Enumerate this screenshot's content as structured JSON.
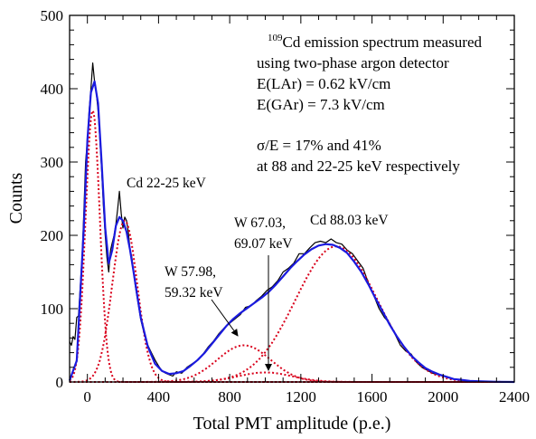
{
  "chart_data": {
    "type": "line",
    "title": "",
    "xlabel": "Total PMT amplitude (p.e.)",
    "ylabel": "Counts",
    "xlim": [
      -100,
      2400
    ],
    "ylim": [
      0,
      500
    ],
    "x_ticks": [
      0,
      400,
      800,
      1200,
      1600,
      2000,
      2400
    ],
    "y_ticks": [
      0,
      100,
      200,
      300,
      400,
      500
    ],
    "x_tick_labels": [
      "0",
      "400",
      "800",
      "1200",
      "1600",
      "2000",
      "2400"
    ],
    "y_tick_labels": [
      "0",
      "100",
      "200",
      "300",
      "400",
      "500"
    ],
    "grid": false,
    "legend": "none",
    "annotation": {
      "line1_superscript": "109",
      "line1_text": "Cd emission spectrum measured",
      "line2": "using two-phase argon detector",
      "line3": "E(LAr) = 0.62 kV/cm",
      "line4": "E(GAr) = 7.3 kV/cm",
      "line5": "σ/E = 17% and 41%",
      "line6": "at 88 and 22-25 keV respectively"
    },
    "peak_labels": [
      {
        "lines": [
          "Cd 22-25 keV"
        ]
      },
      {
        "lines": [
          "W 67.03,",
          "69.07 keV"
        ]
      },
      {
        "lines": [
          "Cd 88.03 keV"
        ]
      },
      {
        "lines": [
          "W 57.98,",
          "59.32 keV"
        ]
      }
    ],
    "components": [
      {
        "mean": 30,
        "sigma": 40,
        "amplitude": 370
      },
      {
        "mean": 210,
        "sigma": 70,
        "amplitude": 220
      },
      {
        "mean": 880,
        "sigma": 150,
        "amplitude": 50
      },
      {
        "mean": 1000,
        "sigma": 150,
        "amplitude": 13
      },
      {
        "mean": 1400,
        "sigma": 230,
        "amplitude": 185
      }
    ],
    "fit": {
      "x": [
        -100,
        -60,
        -20,
        0,
        20,
        40,
        60,
        80,
        100,
        120,
        140,
        160,
        180,
        200,
        220,
        240,
        260,
        280,
        300,
        340,
        380,
        420,
        460,
        500,
        540,
        580,
        620,
        660,
        700,
        740,
        780,
        820,
        860,
        900,
        940,
        980,
        1020,
        1060,
        1100,
        1140,
        1180,
        1220,
        1260,
        1300,
        1340,
        1380,
        1420,
        1460,
        1500,
        1540,
        1580,
        1620,
        1660,
        1700,
        1740,
        1780,
        1820,
        1860,
        1900,
        1940,
        1980,
        2020,
        2060,
        2100,
        2150,
        2200,
        2300,
        2400
      ],
      "y": [
        2,
        29,
        210,
        330,
        395,
        410,
        380,
        300,
        210,
        162,
        180,
        213,
        225,
        220,
        205,
        180,
        150,
        118,
        88,
        48,
        25,
        15,
        11,
        12,
        15,
        22,
        30,
        40,
        52,
        64,
        76,
        86,
        94,
        101,
        108,
        115,
        123,
        133,
        144,
        155,
        165,
        174,
        181,
        186,
        188,
        187,
        183,
        176,
        164,
        150,
        133,
        114,
        96,
        78,
        62,
        48,
        36,
        27,
        19,
        14,
        10,
        7,
        4,
        3,
        1.5,
        1,
        0.3,
        0
      ]
    },
    "measured": {
      "x": [
        -100,
        -90,
        -80,
        -70,
        -60,
        -50,
        -40,
        -30,
        -20,
        -10,
        0,
        10,
        20,
        30,
        40,
        50,
        60,
        70,
        80,
        90,
        100,
        110,
        120,
        130,
        140,
        150,
        160,
        170,
        180,
        190,
        200,
        210,
        220,
        230,
        240,
        250,
        260,
        270,
        280,
        290,
        300,
        320,
        340,
        360,
        380,
        400,
        420,
        440,
        460,
        480,
        500,
        530,
        560,
        590,
        620,
        650,
        680,
        710,
        740,
        770,
        800,
        830,
        860,
        890,
        920,
        950,
        980,
        1010,
        1040,
        1070,
        1100,
        1130,
        1160,
        1190,
        1220,
        1250,
        1280,
        1310,
        1340,
        1370,
        1400,
        1430,
        1460,
        1490,
        1520,
        1550,
        1580,
        1610,
        1640,
        1670,
        1700,
        1730,
        1760,
        1790,
        1820,
        1850,
        1880,
        1910,
        1940,
        1970,
        2000,
        2040,
        2080,
        2120
      ],
      "y": [
        55,
        50,
        62,
        58,
        88,
        90,
        130,
        170,
        230,
        300,
        330,
        370,
        400,
        435,
        410,
        395,
        370,
        330,
        290,
        240,
        200,
        170,
        150,
        180,
        190,
        200,
        215,
        235,
        260,
        230,
        210,
        225,
        220,
        205,
        180,
        170,
        150,
        130,
        115,
        100,
        85,
        65,
        50,
        40,
        30,
        22,
        15,
        12,
        10,
        8,
        14,
        12,
        20,
        25,
        30,
        38,
        48,
        56,
        66,
        74,
        80,
        86,
        92,
        102,
        104,
        111,
        117,
        125,
        130,
        138,
        150,
        155,
        162,
        175,
        175,
        183,
        190,
        192,
        190,
        195,
        190,
        188,
        180,
        175,
        165,
        155,
        135,
        118,
        100,
        88,
        80,
        65,
        50,
        42,
        38,
        27,
        20,
        16,
        12,
        10,
        8,
        5,
        3,
        2
      ]
    }
  }
}
